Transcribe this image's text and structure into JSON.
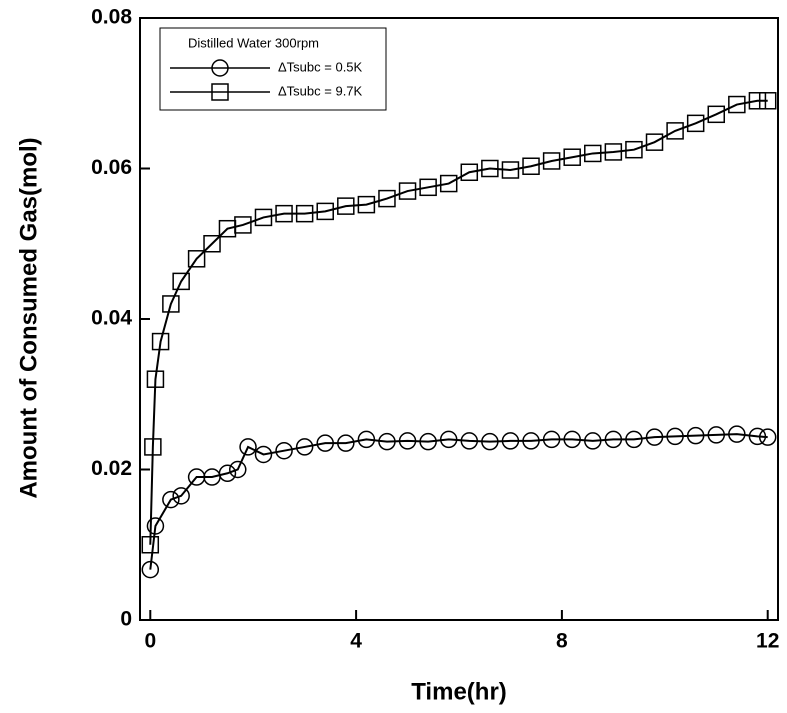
{
  "chart_data": {
    "type": "line",
    "x_label": "Time(hr)",
    "y_label": "Amount of Consumed Gas(mol)",
    "legend_title": "Distilled Water 300rpm",
    "legend_position": "upper left",
    "xlim": [
      -0.2,
      12.2
    ],
    "ylim": [
      0,
      0.08
    ],
    "xticks": [
      0,
      4,
      8,
      12
    ],
    "yticks": [
      0,
      0.02,
      0.04,
      0.06,
      0.08
    ],
    "series": [
      {
        "name": "ΔTsubc = 0.5K",
        "color": "#000000",
        "marker": "circle",
        "x": [
          0,
          0.1,
          0.4,
          0.6,
          0.9,
          1.2,
          1.5,
          1.7,
          1.9,
          2.2,
          2.6,
          3,
          3.4,
          3.8,
          4.2,
          4.6,
          5,
          5.4,
          5.8,
          6.2,
          6.6,
          7,
          7.4,
          7.8,
          8.2,
          8.6,
          9,
          9.4,
          9.8,
          10.2,
          10.6,
          11,
          11.4,
          11.8,
          12
        ],
        "values": [
          0.0067,
          0.0125,
          0.016,
          0.0165,
          0.019,
          0.019,
          0.0195,
          0.02,
          0.023,
          0.022,
          0.0225,
          0.023,
          0.0235,
          0.0235,
          0.024,
          0.0237,
          0.0238,
          0.0237,
          0.024,
          0.0238,
          0.0237,
          0.0238,
          0.0238,
          0.024,
          0.024,
          0.0238,
          0.024,
          0.024,
          0.0243,
          0.0244,
          0.0245,
          0.0246,
          0.0247,
          0.0244,
          0.0243
        ]
      },
      {
        "name": "ΔTsubc = 9.7K",
        "color": "#000000",
        "marker": "square",
        "x": [
          0,
          0.05,
          0.1,
          0.2,
          0.4,
          0.6,
          0.9,
          1.2,
          1.5,
          1.8,
          2.2,
          2.6,
          3,
          3.4,
          3.8,
          4.2,
          4.6,
          5,
          5.4,
          5.8,
          6.2,
          6.6,
          7,
          7.4,
          7.8,
          8.2,
          8.6,
          9,
          9.4,
          9.8,
          10.2,
          10.6,
          11,
          11.4,
          11.8,
          12
        ],
        "values": [
          0.01,
          0.023,
          0.032,
          0.037,
          0.042,
          0.045,
          0.048,
          0.05,
          0.052,
          0.0525,
          0.0535,
          0.054,
          0.054,
          0.0543,
          0.055,
          0.0552,
          0.056,
          0.057,
          0.0575,
          0.058,
          0.0595,
          0.06,
          0.0598,
          0.0603,
          0.061,
          0.0615,
          0.062,
          0.0622,
          0.0625,
          0.0635,
          0.065,
          0.066,
          0.0672,
          0.0685,
          0.069,
          0.069
        ]
      }
    ]
  }
}
